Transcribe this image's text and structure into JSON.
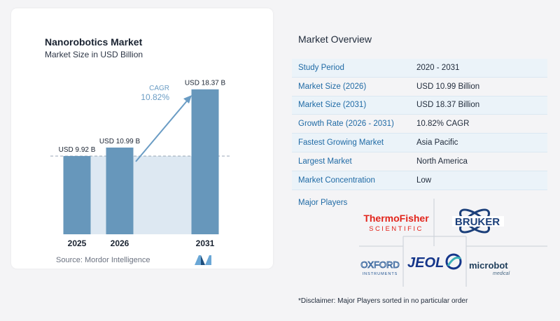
{
  "chart": {
    "title": "Nanorobotics Market",
    "subtitle": "Market Size in USD Billion",
    "source": "Source:  Mordor Intelligence",
    "cagr_label": "CAGR",
    "cagr_value": "10.82%"
  },
  "chart_data": {
    "type": "bar",
    "categories": [
      "2025",
      "2026",
      "2031"
    ],
    "values": [
      9.92,
      10.99,
      18.37
    ],
    "data_labels": [
      "USD 9.92 B",
      "USD 10.99 B",
      "USD 18.37 B"
    ],
    "ylim": [
      0,
      19.5
    ],
    "colors": {
      "bar": "#6797bb",
      "baseline_fill": "#dde8f2",
      "arrow": "#6a9cc4",
      "dashed": "#9aa8b6"
    },
    "annotations": [
      "CAGR",
      "10.82%"
    ]
  },
  "overview": {
    "title": "Market Overview",
    "rows": [
      {
        "label": "Study Period",
        "value": "2020 - 2031"
      },
      {
        "label": "Market Size (2026)",
        "value": "USD 10.99 Billion"
      },
      {
        "label": "Market Size (2031)",
        "value": "USD 18.37 Billion"
      },
      {
        "label": "Growth Rate (2026 - 2031)",
        "value": "10.82% CAGR"
      },
      {
        "label": "Fastest Growing Market",
        "value": "Asia Pacific"
      },
      {
        "label": "Largest Market",
        "value": "North America"
      },
      {
        "label": "Market Concentration",
        "value": "Low"
      }
    ]
  },
  "players": {
    "title": "Major Players",
    "logos": {
      "thermo_line1": "ThermoFisher",
      "thermo_line2": "SCIENTIFIC",
      "bruker": "BRUKER",
      "oxford_line1": "OXFORD",
      "oxford_line2": "INSTRUMENTS",
      "jeol": "JEOL",
      "microbot_line1": "microbot",
      "microbot_line2": "medical"
    },
    "disclaimer": "*Disclaimer: Major Players sorted in no particular order"
  }
}
